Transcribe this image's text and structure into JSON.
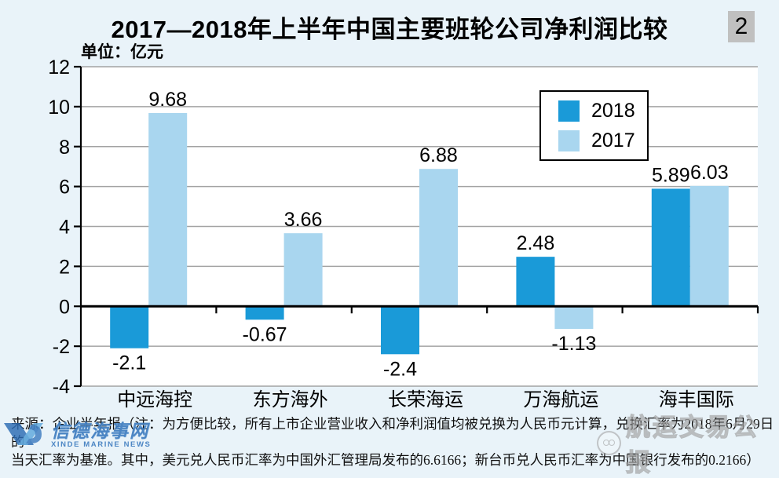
{
  "header": {
    "title": "2017—2018年上半年中国主要班轮公司净利润比较",
    "page_number_badge": "2",
    "unit_label": "单位：亿元"
  },
  "chart_data": {
    "type": "bar",
    "title": "2017—2018年上半年中国主要班轮公司净利润比较",
    "unit": "亿元",
    "categories": [
      "中远海控",
      "东方海外",
      "长荣海运",
      "万海航运",
      "海丰国际"
    ],
    "series": [
      {
        "name": "2018",
        "color": "#1a9ad8",
        "values": [
          -2.1,
          -0.67,
          -2.4,
          2.48,
          5.89
        ],
        "labels": [
          "-2.1",
          "-0.67",
          "-2.4",
          "2.48",
          "5.89"
        ]
      },
      {
        "name": "2017",
        "color": "#a9d6ef",
        "values": [
          9.68,
          3.66,
          6.88,
          -1.13,
          6.03
        ],
        "labels": [
          "9.68",
          "3.66",
          "6.88",
          "-1.13",
          "6.03"
        ]
      }
    ],
    "ylim": [
      -4,
      12
    ],
    "ytick_step": 2,
    "yticks": [
      12,
      10,
      8,
      6,
      4,
      2,
      0,
      -2,
      -4
    ],
    "grid": true,
    "legend_position": "upper-right"
  },
  "legend": {
    "items": [
      {
        "label": "2018",
        "color": "#1a9ad8"
      },
      {
        "label": "2017",
        "color": "#a9d6ef"
      }
    ]
  },
  "footnote": {
    "line1": "来源：企业半年报（注：为方便比较，所有上市企业营业收入和净利润值均被兑换为人民币元计算，兑换汇率为2018年6月29日的",
    "line2": "当天汇率为基准。其中，美元兑人民币汇率为中国外汇管理局发布的6.6166；新台币兑人民币汇率为中国银行发布的0.2166）"
  },
  "watermarks": {
    "xinde_text": "信德海事网",
    "xinde_subtext": "XINDE MARINE NEWS",
    "gongbao_text": "航运交易公报"
  },
  "colors": {
    "background": "#e9f3f9",
    "plot_background": "#ffffff",
    "gridline": "#a3a3a3",
    "axis": "#000000",
    "series_2018": "#1a9ad8",
    "series_2017": "#a9d6ef",
    "badge_background": "#c0c0c0"
  }
}
